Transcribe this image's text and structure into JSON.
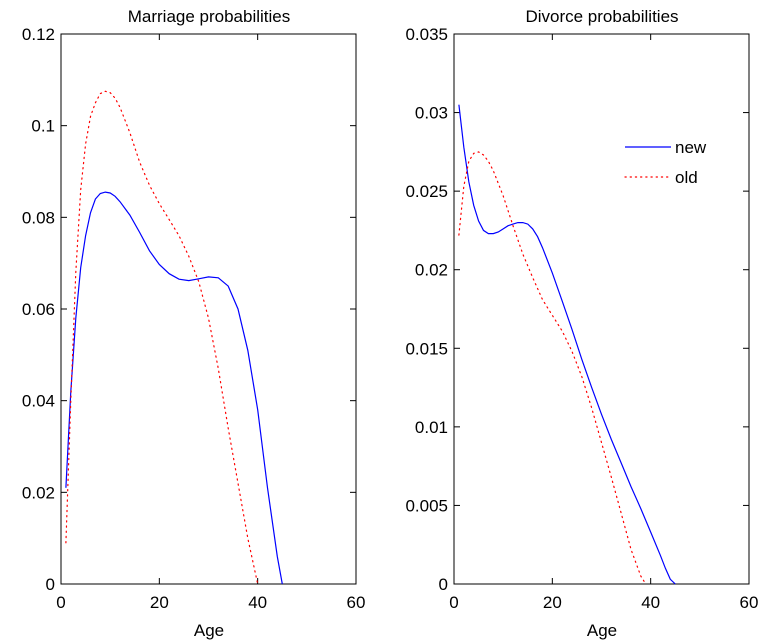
{
  "chart_data": [
    {
      "type": "line",
      "title": "Marriage probabilities",
      "xlabel": "Age",
      "ylabel": "",
      "xlim": [
        0,
        60
      ],
      "ylim": [
        0,
        0.12
      ],
      "xticks": [
        "0",
        "20",
        "40",
        "60"
      ],
      "yticks": [
        "0",
        "0.02",
        "0.04",
        "0.06",
        "0.08",
        "0.1",
        "0.12"
      ],
      "grid": false,
      "legend": null,
      "series": [
        {
          "key": "new",
          "style": "solid",
          "color": "#0000ff",
          "x": [
            1,
            2,
            3,
            4,
            5,
            6,
            7,
            8,
            9,
            10,
            11,
            12,
            14,
            16,
            18,
            20,
            22,
            24,
            26,
            28,
            30,
            32,
            34,
            36,
            38,
            40,
            42,
            44,
            45
          ],
          "y": [
            0.021,
            0.042,
            0.058,
            0.069,
            0.076,
            0.081,
            0.084,
            0.0852,
            0.0855,
            0.0853,
            0.0846,
            0.0834,
            0.0805,
            0.0767,
            0.0727,
            0.0697,
            0.0677,
            0.0665,
            0.0662,
            0.0666,
            0.067,
            0.0668,
            0.065,
            0.06,
            0.051,
            0.038,
            0.021,
            0.006,
            0.0
          ]
        },
        {
          "key": "old",
          "style": "dotted",
          "color": "#ff0000",
          "x": [
            1,
            2,
            3,
            4,
            5,
            6,
            7,
            8,
            9,
            10,
            11,
            12,
            14,
            16,
            18,
            20,
            22,
            24,
            26,
            28,
            30,
            32,
            34,
            36,
            38,
            40
          ],
          "y": [
            0.009,
            0.04,
            0.068,
            0.086,
            0.096,
            0.102,
            0.105,
            0.107,
            0.1075,
            0.1072,
            0.106,
            0.104,
            0.0985,
            0.092,
            0.087,
            0.083,
            0.0795,
            0.076,
            0.0715,
            0.066,
            0.058,
            0.047,
            0.034,
            0.022,
            0.01,
            0.0
          ]
        }
      ]
    },
    {
      "type": "line",
      "title": "Divorce probabilities",
      "xlabel": "Age",
      "ylabel": "",
      "xlim": [
        0,
        60
      ],
      "ylim": [
        0,
        0.035
      ],
      "xticks": [
        "0",
        "20",
        "40",
        "60"
      ],
      "yticks": [
        "0",
        "0.005",
        "0.01",
        "0.015",
        "0.02",
        "0.025",
        "0.03",
        "0.035"
      ],
      "grid": false,
      "legend": {
        "placement": "top-right",
        "entries": [
          {
            "name": "new",
            "style": "solid",
            "color": "#0000ff"
          },
          {
            "name": "old",
            "style": "dotted",
            "color": "#ff0000"
          }
        ]
      },
      "series": [
        {
          "name": "new",
          "style": "solid",
          "color": "#0000ff",
          "x": [
            1,
            2,
            3,
            4,
            5,
            6,
            7,
            8,
            9,
            10,
            11,
            12,
            13,
            14,
            15,
            16,
            17,
            18,
            20,
            22,
            24,
            26,
            28,
            30,
            32,
            34,
            36,
            38,
            40,
            42,
            43,
            44,
            45
          ],
          "y": [
            0.0305,
            0.0278,
            0.0256,
            0.0241,
            0.0231,
            0.0225,
            0.0223,
            0.0223,
            0.0224,
            0.0226,
            0.0228,
            0.0229,
            0.023,
            0.023,
            0.0229,
            0.0226,
            0.0221,
            0.0214,
            0.0198,
            0.018,
            0.0162,
            0.0143,
            0.0125,
            0.0108,
            0.0092,
            0.0077,
            0.0062,
            0.0048,
            0.0033,
            0.0018,
            0.001,
            0.0003,
            0.0
          ]
        },
        {
          "name": "old",
          "style": "dotted",
          "color": "#ff0000",
          "x": [
            1,
            2,
            3,
            4,
            5,
            6,
            7,
            8,
            10,
            12,
            14,
            16,
            18,
            20,
            22,
            24,
            26,
            28,
            30,
            32,
            34,
            36,
            38,
            39
          ],
          "y": [
            0.0222,
            0.0253,
            0.0269,
            0.0274,
            0.0275,
            0.0273,
            0.0269,
            0.0263,
            0.0247,
            0.0228,
            0.021,
            0.0195,
            0.0181,
            0.0171,
            0.0161,
            0.0148,
            0.0132,
            0.0112,
            0.009,
            0.0068,
            0.0045,
            0.0022,
            0.0005,
            0.0
          ]
        }
      ]
    }
  ]
}
